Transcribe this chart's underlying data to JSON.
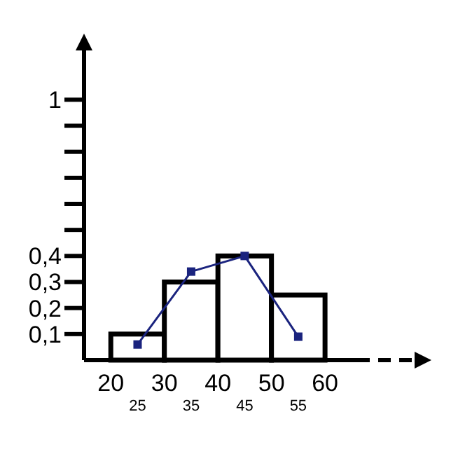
{
  "chart_data": {
    "type": "histogram",
    "bins": [
      20,
      30,
      40,
      50,
      60
    ],
    "values": [
      0.1,
      0.3,
      0.4,
      0.25
    ],
    "color": "#000000",
    "series": [
      {
        "type": "line",
        "color": "#1a237e",
        "x": [
          25,
          35,
          45,
          55
        ],
        "values": [
          0.06,
          0.34,
          0.4,
          0.09
        ],
        "marker": "square"
      }
    ],
    "xlim": [
      15,
      66
    ],
    "ylim": [
      0,
      1.2
    ],
    "xticks": [
      20,
      30,
      40,
      50,
      60
    ],
    "annotations": [
      "25",
      "35",
      "45",
      "55"
    ],
    "yticks": [
      {
        "value": 0.1,
        "label": "0,1"
      },
      {
        "value": 0.2,
        "label": "0,2"
      },
      {
        "value": 0.3,
        "label": "0,3"
      },
      {
        "value": 0.4,
        "label": "0,4"
      },
      {
        "value": 0.5,
        "label": null
      },
      {
        "value": 0.6,
        "label": null
      },
      {
        "value": 0.7,
        "label": null
      },
      {
        "value": 0.8,
        "label": null
      },
      {
        "value": 0.9,
        "label": null
      },
      1
    ],
    "grid": false
  }
}
